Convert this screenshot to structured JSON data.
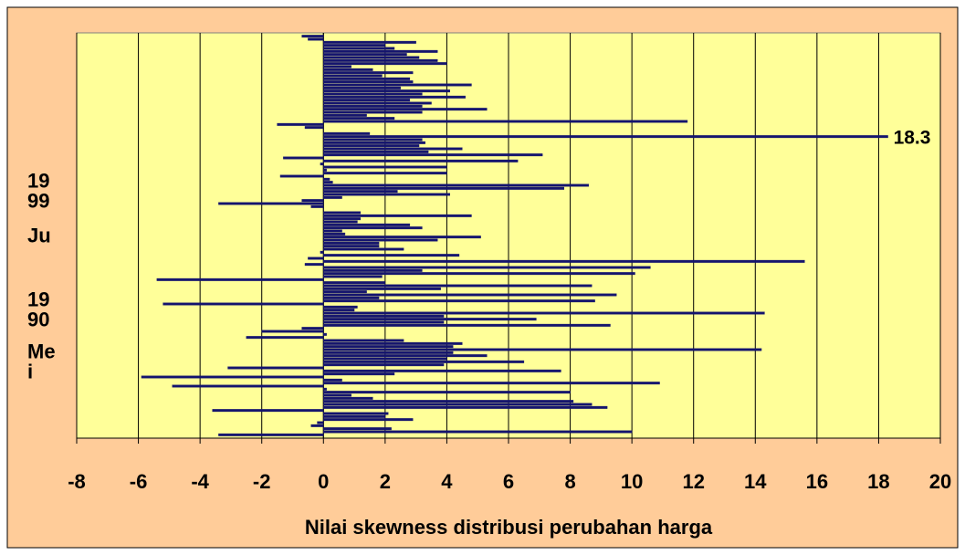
{
  "chart_data": {
    "type": "hbar",
    "xlabel": "Nilai skewness distribusi perubahan harga",
    "annotation": "18.3",
    "color": "#14146e",
    "xlim": [
      -8,
      20
    ],
    "xticks": [
      -8,
      -6,
      -4,
      -2,
      0,
      2,
      4,
      6,
      8,
      10,
      12,
      14,
      16,
      18,
      20
    ],
    "grid": true,
    "categories": [
      null,
      null,
      null,
      null,
      null,
      null,
      null,
      null,
      null,
      null,
      null,
      null,
      null,
      null,
      null,
      null,
      null,
      null,
      null,
      null,
      null,
      null,
      null,
      null,
      null,
      null,
      null,
      null,
      null,
      null,
      null,
      null,
      null,
      null,
      null,
      null,
      null,
      null,
      null,
      null,
      null,
      null,
      null,
      null,
      null,
      null,
      null,
      null,
      null,
      null,
      null,
      "1999",
      null,
      null,
      null,
      null,
      null,
      null,
      null,
      null,
      null,
      null,
      null,
      null,
      null,
      null,
      null,
      null,
      null,
      "Ju",
      null,
      null,
      null,
      null,
      null,
      null,
      null,
      null,
      null,
      null,
      null,
      null,
      null,
      null,
      null,
      null,
      null,
      null,
      null,
      null,
      "1990",
      null,
      null,
      null,
      null,
      null,
      null,
      null,
      null,
      null,
      null,
      null,
      null,
      null,
      null,
      null,
      null,
      "Mei",
      null,
      null,
      null,
      null,
      null,
      null,
      null,
      null,
      null,
      null,
      null,
      null,
      null,
      null,
      null,
      null,
      null,
      null,
      null,
      null,
      null,
      null,
      null,
      null
    ],
    "values": [
      -0.7,
      -0.5,
      3.0,
      2.0,
      2.3,
      3.7,
      2.7,
      3.1,
      3.7,
      4.0,
      0.9,
      1.6,
      2.9,
      1.9,
      2.8,
      2.9,
      4.8,
      2.5,
      4.1,
      3.2,
      4.6,
      2.8,
      3.5,
      3.2,
      5.3,
      3.2,
      1.4,
      2.3,
      11.8,
      -1.5,
      -0.6,
      0,
      1.5,
      18.3,
      3.2,
      3.3,
      3.1,
      4.5,
      3.4,
      7.1,
      -1.3,
      6.3,
      -0.1,
      4.0,
      0.1,
      4.0,
      -1.4,
      0.2,
      0.3,
      8.6,
      7.8,
      2.4,
      4.1,
      0.6,
      -0.7,
      -3.4,
      -0.4,
      0,
      1.2,
      4.8,
      1.2,
      1.1,
      2.8,
      3.2,
      0.6,
      0.7,
      5.1,
      3.7,
      1.8,
      1.8,
      2.6,
      -0.1,
      4.4,
      -0.5,
      15.6,
      -0.6,
      10.6,
      3.2,
      10.1,
      1.9,
      -5.4,
      2.0,
      8.7,
      3.8,
      1.4,
      9.5,
      1.8,
      8.8,
      -5.2,
      1.1,
      1.0,
      14.3,
      3.9,
      6.9,
      3.9,
      9.3,
      -0.7,
      -2.0,
      0.1,
      -2.5,
      2.6,
      4.5,
      4.2,
      14.2,
      4.2,
      5.3,
      4.0,
      6.5,
      3.9,
      -3.1,
      7.7,
      2.3,
      -5.9,
      0.6,
      10.9,
      -4.9,
      0.1,
      8.0,
      0.9,
      1.6,
      8.1,
      8.7,
      9.2,
      -3.6,
      2.1,
      2.0,
      2.9,
      -0.2,
      -0.4,
      2.2,
      10.0,
      -3.4
    ]
  }
}
